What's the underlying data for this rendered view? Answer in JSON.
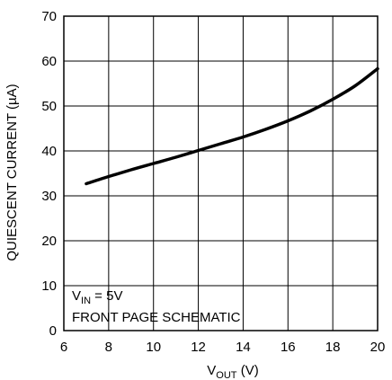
{
  "chart_data": {
    "type": "line",
    "title": "",
    "xlabel": {
      "main": "V",
      "sub": "OUT",
      "unit": " (V)"
    },
    "ylabel": "QUIESCENT CURRENT (µA)",
    "xlim": [
      6,
      20
    ],
    "ylim": [
      0,
      70
    ],
    "xticks": [
      6,
      8,
      10,
      12,
      14,
      16,
      18,
      20
    ],
    "yticks": [
      0,
      10,
      20,
      30,
      40,
      50,
      60,
      70
    ],
    "grid": true,
    "series": [
      {
        "x": [
          7.0,
          8.0,
          9.0,
          10.0,
          11.0,
          12.0,
          13.0,
          14.0,
          15.0,
          16.0,
          17.0,
          18.0,
          19.0,
          20.0
        ],
        "values": [
          32.7,
          34.3,
          35.8,
          37.2,
          38.6,
          40.1,
          41.6,
          43.1,
          44.8,
          46.7,
          48.9,
          51.5,
          54.5,
          58.3
        ]
      }
    ],
    "annotation": {
      "line1": {
        "main": "V",
        "sub": "IN",
        "rest": " = 5V"
      },
      "line2": "FRONT PAGE SCHEMATIC"
    }
  }
}
